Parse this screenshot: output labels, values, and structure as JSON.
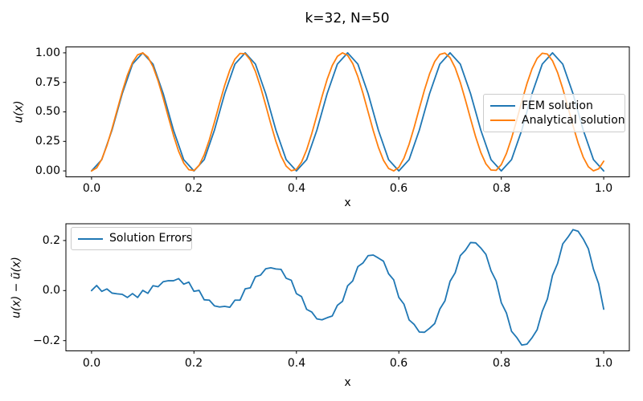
{
  "colors": {
    "background": "#ffffff",
    "axes_edge": "#000000",
    "legend_border": "#cccccc",
    "series_blue": "#1f77b4",
    "series_orange": "#ff7f0e"
  },
  "chart_data": [
    {
      "id": "solution-plot",
      "type": "line",
      "title": "k=32, N=50",
      "xlabel": "x",
      "ylabel": "u(x)",
      "xlim": [
        -0.05,
        1.05
      ],
      "ylim": [
        -0.05,
        1.05
      ],
      "grid": false,
      "xticks": [
        0.0,
        0.2,
        0.4,
        0.6,
        0.8,
        1.0
      ],
      "xtick_labels": [
        "0.0",
        "0.2",
        "0.4",
        "0.6",
        "0.8",
        "1.0"
      ],
      "yticks": [
        0.0,
        0.25,
        0.5,
        0.75,
        1.0
      ],
      "ytick_labels": [
        "0.00",
        "0.25",
        "0.50",
        "0.75",
        "1.00"
      ],
      "legend": {
        "position": "center right",
        "entries": [
          "FEM solution",
          "Analytical solution"
        ]
      },
      "series": [
        {
          "name": "FEM solution",
          "color": "#1f77b4",
          "x0": 0,
          "dx": 0.02,
          "y": [
            0,
            0.0955,
            0.3455,
            0.6545,
            0.9045,
            1,
            0.9045,
            0.6545,
            0.3455,
            0.0955,
            0,
            0.0955,
            0.3455,
            0.6545,
            0.9045,
            1,
            0.9045,
            0.6545,
            0.3455,
            0.0955,
            0,
            0.0955,
            0.3455,
            0.6545,
            0.9045,
            1,
            0.9045,
            0.6545,
            0.3455,
            0.0955,
            0,
            0.0955,
            0.3455,
            0.6545,
            0.9045,
            1,
            0.9045,
            0.6545,
            0.3455,
            0.0955,
            0,
            0.0955,
            0.3455,
            0.6545,
            0.9045,
            1,
            0.9045,
            0.6545,
            0.3455,
            0.0955,
            0
          ]
        },
        {
          "name": "Analytical solution",
          "color": "#ff7f0e",
          "x0": 0,
          "dx": 0.01,
          "y": [
            0,
            0.0254,
            0.099,
            0.2132,
            0.3566,
            0.5146,
            0.6711,
            0.8102,
            0.9178,
            0.983,
            0.9992,
            0.9646,
            0.883,
            0.7624,
            0.6152,
            0.4563,
            0.3018,
            0.1675,
            0.0669,
            0.0103,
            0.0034,
            0.0469,
            0.1364,
            0.2629,
            0.4134,
            0.5727,
            0.7246,
            0.8537,
            0.9469,
            0.9948,
            0.9924,
            0.94,
            0.8429,
            0.711,
            0.5577,
            0.3986,
            0.2497,
            0.1263,
            0.0408,
            0.0019,
            0.0136,
            0.0746,
            0.1789,
            0.3158,
            0.4713,
            0.6298,
            0.7751,
            0.8925,
            0.97,
            0.9998,
            0.9789,
            0.9093,
            0.7982,
            0.6568,
            0.4995,
            0.3423,
            0.201,
            0.0901,
            0.0209,
            0.0002,
            0.0303,
            0.1081,
            0.2257,
            0.3711,
            0.5296,
            0.6851,
            0.8219,
            0.9259,
            0.9867,
            0.998,
            0.9589,
            0.8731,
            0.7494,
            0.6005,
            0.4413,
            0.2881,
            0.1564,
            0.0596,
            0.0075,
            0.0054,
            0.0535,
            0.147,
            0.2763,
            0.4283,
            0.5876,
            0.738,
            0.8642,
            0.9535,
            0.9967,
            0.9895,
            0.9326,
            0.8318,
            0.6973,
            0.5427,
            0.3839,
            0.2368,
            0.1164,
            0.035,
            0.0008,
            0.0173,
            0.0827
          ]
        }
      ]
    },
    {
      "id": "error-plot",
      "type": "line",
      "title": "",
      "xlabel": "x",
      "ylabel": "u(x) − ũ(x)",
      "xlim": [
        -0.05,
        1.05
      ],
      "ylim": [
        -0.241,
        0.267
      ],
      "grid": false,
      "xticks": [
        0.0,
        0.2,
        0.4,
        0.6,
        0.8,
        1.0
      ],
      "xtick_labels": [
        "0.0",
        "0.2",
        "0.4",
        "0.6",
        "0.8",
        "1.0"
      ],
      "yticks": [
        -0.2,
        0.0,
        0.2
      ],
      "ytick_labels": [
        "−0.2",
        "0.0",
        "0.2"
      ],
      "legend": {
        "position": "upper left",
        "entries": [
          "Solution Errors"
        ]
      },
      "series": [
        {
          "name": "Solution Errors",
          "color": "#1f77b4",
          "x0": 0,
          "dx": 0.01,
          "y": [
            0,
            0.0202,
            -0.0032,
            0.0066,
            -0.01,
            -0.0131,
            -0.0149,
            -0.0276,
            -0.012,
            -0.0276,
            0.0007,
            -0.0111,
            0.0194,
            0.0154,
            0.0354,
            0.0393,
            0.0393,
            0.0477,
            0.0257,
            0.0338,
            -0.0031,
            0.0008,
            -0.0368,
            -0.0382,
            -0.0611,
            -0.0654,
            -0.0631,
            -0.0668,
            -0.0382,
            -0.0383,
            0.0068,
            0.0111,
            0.0554,
            0.0617,
            0.0871,
            0.0913,
            0.0862,
            0.0848,
            0.0492,
            0.0413,
            -0.0122,
            -0.0241,
            -0.0751,
            -0.0858,
            -0.1132,
            -0.1168,
            -0.1085,
            -0.1017,
            -0.059,
            -0.0428,
            0.019,
            0.0387,
            0.0957,
            0.1104,
            0.1395,
            0.1419,
            0.1301,
            0.1174,
            0.0671,
            0.0428,
            -0.0273,
            -0.0543,
            -0.1172,
            -0.1355,
            -0.1657,
            -0.1666,
            -0.1507,
            -0.1318,
            -0.074,
            -0.0411,
            0.037,
            0.0713,
            0.1396,
            0.1611,
            0.1919,
            0.1907,
            0.1702,
            0.1448,
            0.0792,
            0.0382,
            -0.0482,
            -0.0893,
            -0.1627,
            -0.187,
            -0.2179,
            -0.2142,
            -0.1887,
            -0.1566,
            -0.083,
            -0.0335,
            0.0607,
            0.1085,
            0.1865,
            0.2131,
            0.2435,
            0.2369,
            0.2062,
            0.167,
            0.0852,
            0.0275,
            -0.0744
          ]
        }
      ]
    }
  ]
}
